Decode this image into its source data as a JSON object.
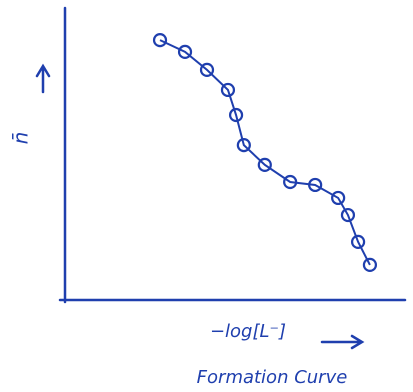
{
  "chart_data": {
    "type": "line",
    "y_label": "n̄",
    "x_label": "−log[L⁻]",
    "caption": "Formation Curve",
    "color": "#1f3fae",
    "x": [
      2.9,
      3.64,
      4.29,
      4.91,
      5.15,
      5.38,
      6.0,
      6.75,
      7.49,
      8.17,
      8.46,
      8.76,
      9.11
    ],
    "values": [
      8.81,
      8.41,
      7.8,
      7.12,
      6.27,
      5.25,
      4.58,
      4.0,
      3.9,
      3.46,
      2.88,
      1.97,
      1.19
    ],
    "xlim": [
      0,
      10
    ],
    "ylim": [
      0,
      10
    ]
  }
}
